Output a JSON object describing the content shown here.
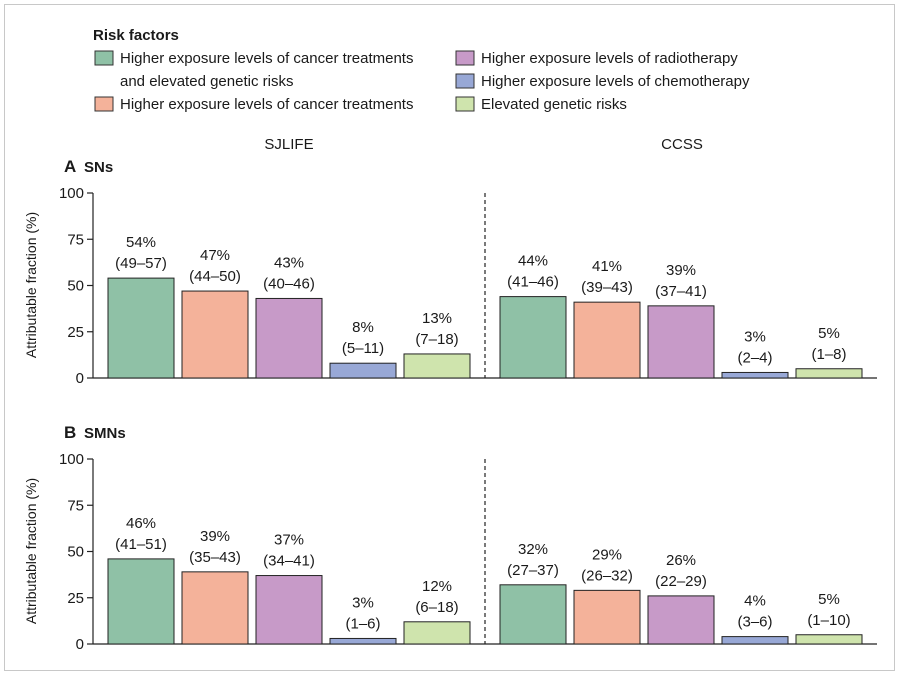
{
  "legend": {
    "title": "Risk factors",
    "items": [
      {
        "line1": "Higher exposure levels of cancer treatments",
        "line2": "and elevated genetic risks",
        "color": "#8fc1a6"
      },
      {
        "line1": "Higher exposure levels of cancer treatments",
        "line2": "",
        "color": "#f4b29a"
      },
      {
        "line1": "Higher exposure levels of radiotherapy",
        "line2": "",
        "color": "#c79ac8"
      },
      {
        "line1": "Higher exposure levels of chemotherapy",
        "line2": "",
        "color": "#98a8d6"
      },
      {
        "line1": "Elevated genetic risks",
        "line2": "",
        "color": "#cfe4ad"
      }
    ]
  },
  "chart_data": [
    {
      "type": "bar",
      "panel_letter": "A",
      "panel_title": "SNs",
      "ylabel": "Attributable fraction (%)",
      "ylim": [
        0,
        100
      ],
      "yticks": [
        "0",
        "25",
        "50",
        "75",
        "100"
      ],
      "groups": [
        {
          "name": "SJLIFE",
          "values": [
            54,
            47,
            43,
            8,
            13
          ],
          "pct": [
            "54%",
            "47%",
            "43%",
            "8%",
            "13%"
          ],
          "ci": [
            "(49–57)",
            "(44–50)",
            "(40–46)",
            "(5–11)",
            "(7–18)"
          ]
        },
        {
          "name": "CCSS",
          "values": [
            44,
            41,
            39,
            3,
            5
          ],
          "pct": [
            "44%",
            "41%",
            "39%",
            "3%",
            "5%"
          ],
          "ci": [
            "(41–46)",
            "(39–43)",
            "(37–41)",
            "(2–4)",
            "(1–8)"
          ]
        }
      ]
    },
    {
      "type": "bar",
      "panel_letter": "B",
      "panel_title": "SMNs",
      "ylabel": "Attributable fraction (%)",
      "ylim": [
        0,
        100
      ],
      "yticks": [
        "0",
        "25",
        "50",
        "75",
        "100"
      ],
      "groups": [
        {
          "name": "SJLIFE",
          "values": [
            46,
            39,
            37,
            3,
            12
          ],
          "pct": [
            "46%",
            "39%",
            "37%",
            "3%",
            "12%"
          ],
          "ci": [
            "(41–51)",
            "(35–43)",
            "(34–41)",
            "(1–6)",
            "(6–18)"
          ]
        },
        {
          "name": "CCSS",
          "values": [
            32,
            29,
            26,
            4,
            5
          ],
          "pct": [
            "32%",
            "29%",
            "26%",
            "4%",
            "5%"
          ],
          "ci": [
            "(27–37)",
            "(26–32)",
            "(22–29)",
            "(3–6)",
            "(1–10)"
          ]
        }
      ]
    }
  ]
}
